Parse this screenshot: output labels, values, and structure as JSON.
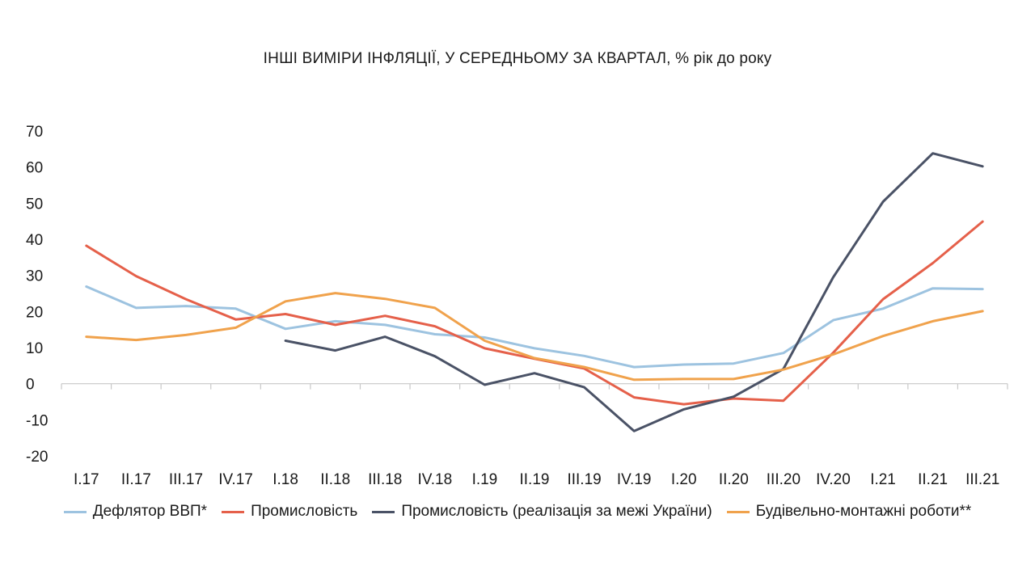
{
  "chart_data": {
    "type": "line",
    "title": "ІНШІ ВИМІРИ ІНФЛЯЦІЇ, У СЕРЕДНЬОМУ ЗА КВАРТАЛ, % рік до року",
    "xlabel": "",
    "ylabel": "",
    "ylim": [
      -20,
      70
    ],
    "yticks": [
      70,
      60,
      50,
      40,
      30,
      20,
      10,
      0,
      -10,
      -20
    ],
    "grid": false,
    "legend_position": "bottom",
    "categories": [
      "I.17",
      "II.17",
      "III.17",
      "IV.17",
      "I.18",
      "II.18",
      "III.18",
      "IV.18",
      "I.19",
      "II.19",
      "III.19",
      "IV.19",
      "I.20",
      "II.20",
      "III.20",
      "IV.20",
      "I.21",
      "II.21",
      "III.21"
    ],
    "series": [
      {
        "name": "Дефлятор ВВП*",
        "color": "#9dc3e0",
        "values": [
          26.9,
          21.0,
          21.5,
          20.8,
          15.2,
          17.3,
          16.3,
          13.7,
          12.8,
          9.8,
          7.7,
          4.6,
          5.3,
          5.6,
          8.5,
          17.6,
          20.8,
          26.4,
          26.2
        ]
      },
      {
        "name": "Промисловість",
        "color": "#e5604a",
        "values": [
          38.2,
          29.8,
          23.4,
          17.8,
          19.3,
          16.3,
          18.8,
          15.9,
          9.8,
          6.9,
          4.2,
          -3.8,
          -5.7,
          -4.1,
          -4.7,
          8.6,
          23.4,
          33.4,
          44.9
        ]
      },
      {
        "name": "Промисловість (реалізація за межі України)",
        "color": "#4a5266",
        "values": [
          null,
          null,
          null,
          null,
          11.9,
          9.2,
          13.0,
          7.6,
          -0.3,
          2.9,
          -1.0,
          -13.1,
          -7.1,
          -3.6,
          4.1,
          29.5,
          50.4,
          63.8,
          60.2
        ]
      },
      {
        "name": "Будівельно-монтажні роботи**",
        "color": "#f0a24c",
        "values": [
          13.0,
          12.1,
          13.5,
          15.5,
          22.8,
          25.1,
          23.5,
          21.0,
          11.9,
          7.1,
          4.6,
          1.1,
          1.3,
          1.3,
          3.9,
          8.1,
          13.2,
          17.3,
          20.1
        ]
      }
    ]
  }
}
